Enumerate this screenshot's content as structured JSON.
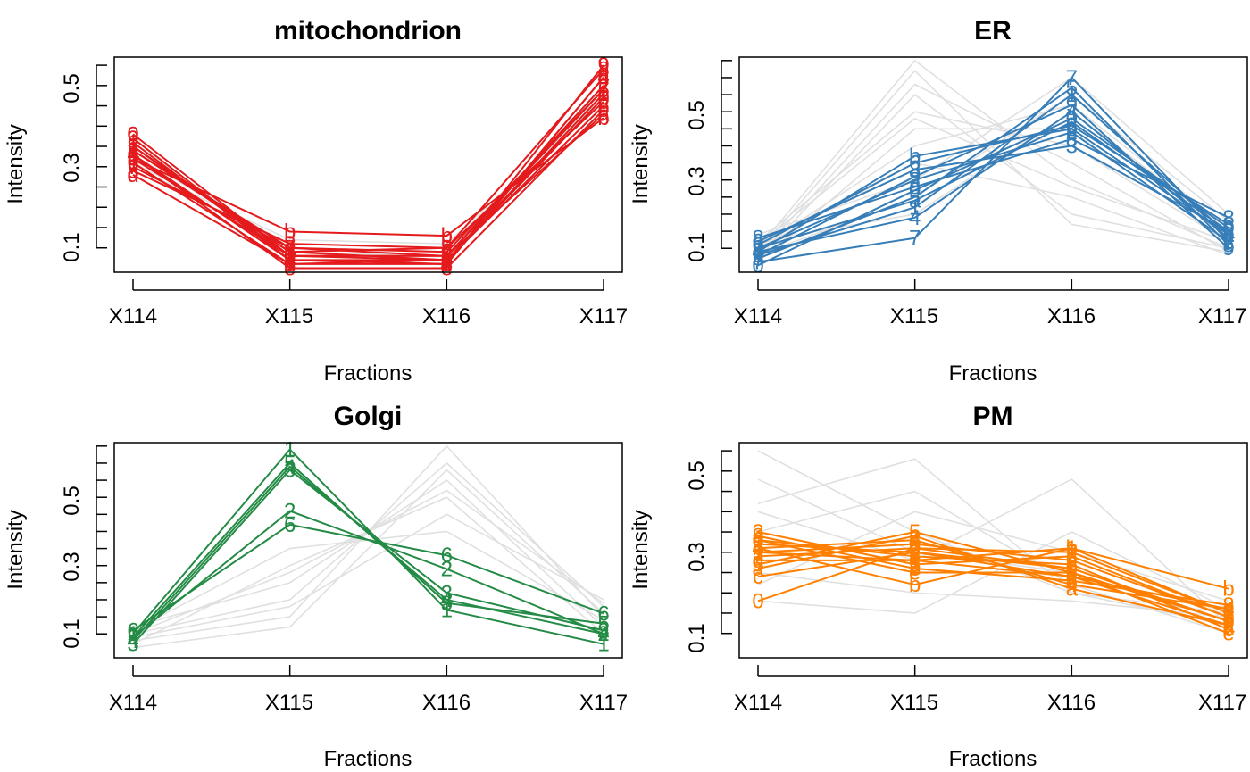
{
  "chart_data": [
    {
      "type": "line",
      "title": "mitochondrion",
      "xlabel": "Fractions",
      "ylabel": "Intensity",
      "categories": [
        "X114",
        "X115",
        "X116",
        "X117"
      ],
      "yticks": [
        "0.1",
        "0.3",
        "0.5"
      ],
      "ylim": [
        0.04,
        0.57
      ],
      "color": "#E41A1C",
      "background_profiles": [
        [
          0.3,
          0.12,
          0.11,
          0.47
        ],
        [
          0.33,
          0.1,
          0.09,
          0.48
        ],
        [
          0.36,
          0.09,
          0.08,
          0.47
        ],
        [
          0.31,
          0.11,
          0.1,
          0.48
        ]
      ],
      "series": [
        {
          "label": "0",
          "values": [
            0.38,
            0.08,
            0.07,
            0.47
          ]
        },
        {
          "label": "1",
          "values": [
            0.36,
            0.07,
            0.07,
            0.48
          ]
        },
        {
          "label": "2",
          "values": [
            0.35,
            0.08,
            0.08,
            0.5
          ]
        },
        {
          "label": "3",
          "values": [
            0.34,
            0.09,
            0.07,
            0.47
          ]
        },
        {
          "label": "4",
          "values": [
            0.33,
            0.07,
            0.06,
            0.52
          ]
        },
        {
          "label": "5",
          "values": [
            0.32,
            0.08,
            0.08,
            0.49
          ]
        },
        {
          "label": "6",
          "values": [
            0.31,
            0.06,
            0.07,
            0.45
          ]
        },
        {
          "label": "7",
          "values": [
            0.3,
            0.1,
            0.09,
            0.49
          ]
        },
        {
          "label": "8",
          "values": [
            0.29,
            0.11,
            0.1,
            0.54
          ]
        },
        {
          "label": "9",
          "values": [
            0.37,
            0.07,
            0.06,
            0.55
          ]
        },
        {
          "label": "a",
          "values": [
            0.34,
            0.1,
            0.08,
            0.43
          ]
        },
        {
          "label": "b",
          "values": [
            0.32,
            0.14,
            0.13,
            0.42
          ]
        },
        {
          "label": "c",
          "values": [
            0.35,
            0.09,
            0.1,
            0.46
          ]
        },
        {
          "label": "d",
          "values": [
            0.28,
            0.06,
            0.06,
            0.52
          ]
        },
        {
          "label": "e",
          "values": [
            0.33,
            0.05,
            0.05,
            0.44
          ]
        }
      ]
    },
    {
      "type": "line",
      "title": "ER",
      "xlabel": "Fractions",
      "ylabel": "Intensity",
      "categories": [
        "X114",
        "X115",
        "X116",
        "X117"
      ],
      "yticks": [
        "0.1",
        "0.3",
        "0.5"
      ],
      "ylim": [
        0.03,
        0.66
      ],
      "color": "#377EB8",
      "background_profiles": [
        [
          0.1,
          0.65,
          0.3,
          0.1
        ],
        [
          0.08,
          0.58,
          0.35,
          0.09
        ],
        [
          0.12,
          0.5,
          0.4,
          0.12
        ],
        [
          0.06,
          0.45,
          0.45,
          0.14
        ],
        [
          0.1,
          0.4,
          0.52,
          0.16
        ],
        [
          0.14,
          0.3,
          0.6,
          0.2
        ],
        [
          0.08,
          0.25,
          0.55,
          0.18
        ],
        [
          0.12,
          0.2,
          0.5,
          0.15
        ],
        [
          0.1,
          0.35,
          0.25,
          0.08
        ],
        [
          0.07,
          0.55,
          0.2,
          0.1
        ],
        [
          0.11,
          0.48,
          0.28,
          0.12
        ],
        [
          0.09,
          0.62,
          0.17,
          0.09
        ]
      ],
      "series": [
        {
          "label": "0",
          "values": [
            0.05,
            0.27,
            0.48,
            0.16
          ]
        },
        {
          "label": "1",
          "values": [
            0.08,
            0.22,
            0.55,
            0.14
          ]
        },
        {
          "label": "2",
          "values": [
            0.1,
            0.3,
            0.44,
            0.12
          ]
        },
        {
          "label": "3",
          "values": [
            0.12,
            0.33,
            0.4,
            0.15
          ]
        },
        {
          "label": "4",
          "values": [
            0.09,
            0.19,
            0.5,
            0.13
          ]
        },
        {
          "label": "5",
          "values": [
            0.07,
            0.25,
            0.57,
            0.11
          ]
        },
        {
          "label": "6",
          "values": [
            0.11,
            0.35,
            0.46,
            0.17
          ]
        },
        {
          "label": "7",
          "values": [
            0.06,
            0.13,
            0.6,
            0.12
          ]
        },
        {
          "label": "8",
          "values": [
            0.13,
            0.28,
            0.42,
            0.19
          ]
        },
        {
          "label": "9",
          "values": [
            0.08,
            0.31,
            0.52,
            0.1
          ]
        },
        {
          "label": "a",
          "values": [
            0.1,
            0.24,
            0.47,
            0.15
          ]
        },
        {
          "label": "b",
          "values": [
            0.09,
            0.37,
            0.45,
            0.14
          ]
        }
      ]
    },
    {
      "type": "line",
      "title": "Golgi",
      "xlabel": "Fractions",
      "ylabel": "Intensity",
      "categories": [
        "X114",
        "X115",
        "X116",
        "X117"
      ],
      "yticks": [
        "0.1",
        "0.3",
        "0.5"
      ],
      "ylim": [
        0.03,
        0.66
      ],
      "color": "#238B45",
      "background_profiles": [
        [
          0.08,
          0.15,
          0.65,
          0.15
        ],
        [
          0.1,
          0.2,
          0.6,
          0.18
        ],
        [
          0.12,
          0.25,
          0.55,
          0.12
        ],
        [
          0.07,
          0.3,
          0.5,
          0.1
        ],
        [
          0.09,
          0.18,
          0.45,
          0.2
        ],
        [
          0.11,
          0.35,
          0.4,
          0.14
        ],
        [
          0.06,
          0.12,
          0.58,
          0.16
        ],
        [
          0.1,
          0.28,
          0.52,
          0.19
        ]
      ],
      "series": [
        {
          "label": "1",
          "values": [
            0.1,
            0.64,
            0.17,
            0.07
          ]
        },
        {
          "label": "2",
          "values": [
            0.09,
            0.46,
            0.29,
            0.1
          ]
        },
        {
          "label": "3",
          "values": [
            0.07,
            0.58,
            0.22,
            0.11
          ]
        },
        {
          "label": "4",
          "values": [
            0.08,
            0.59,
            0.2,
            0.1
          ]
        },
        {
          "label": "5",
          "values": [
            0.09,
            0.6,
            0.19,
            0.13
          ]
        },
        {
          "label": "6",
          "values": [
            0.11,
            0.42,
            0.33,
            0.16
          ]
        }
      ]
    },
    {
      "type": "line",
      "title": "PM",
      "xlabel": "Fractions",
      "ylabel": "Intensity",
      "categories": [
        "X114",
        "X115",
        "X116",
        "X117"
      ],
      "yticks": [
        "0.1",
        "0.3",
        "0.5"
      ],
      "ylim": [
        0.04,
        0.57
      ],
      "color": "#FF7F00",
      "background_profiles": [
        [
          0.55,
          0.35,
          0.2,
          0.12
        ],
        [
          0.48,
          0.3,
          0.25,
          0.1
        ],
        [
          0.42,
          0.53,
          0.2,
          0.15
        ],
        [
          0.4,
          0.28,
          0.48,
          0.12
        ],
        [
          0.22,
          0.4,
          0.3,
          0.18
        ],
        [
          0.18,
          0.15,
          0.35,
          0.16
        ],
        [
          0.35,
          0.45,
          0.22,
          0.1
        ],
        [
          0.25,
          0.2,
          0.18,
          0.14
        ]
      ],
      "series": [
        {
          "label": "0",
          "values": [
            0.18,
            0.31,
            0.26,
            0.13
          ]
        },
        {
          "label": "1",
          "values": [
            0.3,
            0.28,
            0.31,
            0.15
          ]
        },
        {
          "label": "2",
          "values": [
            0.32,
            0.3,
            0.24,
            0.12
          ]
        },
        {
          "label": "3",
          "values": [
            0.35,
            0.27,
            0.29,
            0.14
          ]
        },
        {
          "label": "4",
          "values": [
            0.31,
            0.33,
            0.22,
            0.16
          ]
        },
        {
          "label": "5",
          "values": [
            0.27,
            0.35,
            0.25,
            0.13
          ]
        },
        {
          "label": "6",
          "values": [
            0.33,
            0.29,
            0.27,
            0.11
          ]
        },
        {
          "label": "7",
          "values": [
            0.29,
            0.31,
            0.3,
            0.15
          ]
        },
        {
          "label": "8",
          "values": [
            0.34,
            0.26,
            0.23,
            0.17
          ]
        },
        {
          "label": "9",
          "values": [
            0.3,
            0.32,
            0.28,
            0.14
          ]
        },
        {
          "label": "a",
          "values": [
            0.26,
            0.34,
            0.21,
            0.12
          ]
        },
        {
          "label": "b",
          "values": [
            0.31,
            0.22,
            0.31,
            0.21
          ]
        },
        {
          "label": "c",
          "values": [
            0.24,
            0.3,
            0.26,
            0.13
          ]
        },
        {
          "label": "d",
          "values": [
            0.28,
            0.28,
            0.24,
            0.16
          ]
        },
        {
          "label": "e",
          "values": [
            0.33,
            0.25,
            0.25,
            0.1
          ]
        }
      ]
    }
  ]
}
